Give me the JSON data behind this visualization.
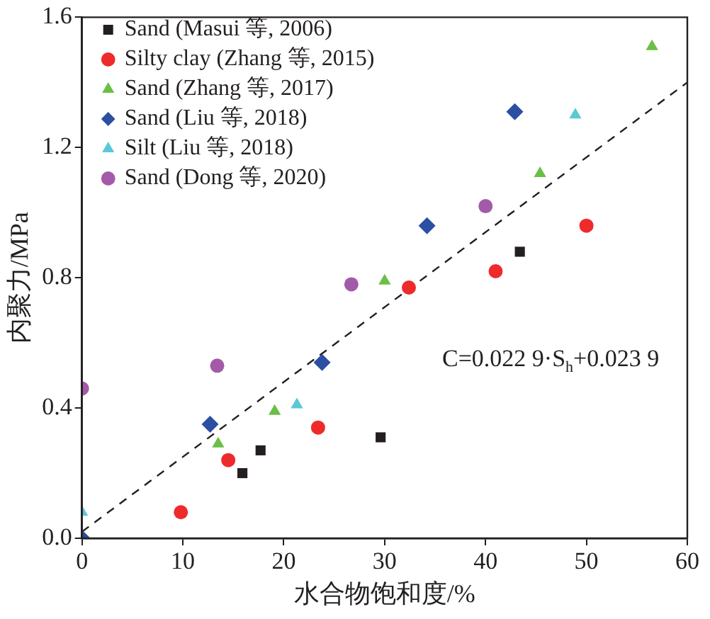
{
  "chart_data": {
    "type": "scatter",
    "xlabel": "水合物饱和度/%",
    "ylabel": "内聚力/MPa",
    "xlim": [
      0,
      60
    ],
    "xticks": [
      0,
      10,
      20,
      30,
      40,
      50,
      60
    ],
    "ylim": [
      0,
      1.6
    ],
    "yticks": [
      {
        "value": 0,
        "label": "0.0"
      },
      0.4,
      0.8,
      1.2,
      1.6
    ],
    "grid": false,
    "legend": "top left",
    "annotations": [
      "C=0.022 9·S$_{h}$+0.023 9"
    ],
    "series": [
      {
        "name": "Sand (Masui 等, 2006)",
        "color": "#231f20",
        "marker": "square",
        "x": [
          15.9,
          17.7,
          29.6,
          43.4
        ],
        "values": [
          0.2,
          0.27,
          0.31,
          0.88
        ]
      },
      {
        "name": "Silty clay (Zhang 等, 2015)",
        "color": "#ee2a2a",
        "marker": "circle",
        "x": [
          9.8,
          14.5,
          23.4,
          32.4,
          41.0,
          50.0
        ],
        "values": [
          0.08,
          0.24,
          0.34,
          0.77,
          0.82,
          0.96
        ]
      },
      {
        "name": "Sand (Zhang 等, 2017)",
        "color": "#6abf45",
        "marker": "triangle",
        "x": [
          13.5,
          19.1,
          30.0,
          45.4,
          56.5
        ],
        "values": [
          0.29,
          0.39,
          0.79,
          1.12,
          1.51
        ]
      },
      {
        "name": "Sand (Liu 等, 2018)",
        "color": "#2a4fa3",
        "marker": "diamond",
        "x": [
          0,
          12.7,
          23.8,
          34.2,
          42.9
        ],
        "values": [
          0.0,
          0.35,
          0.54,
          0.96,
          1.31
        ]
      },
      {
        "name": "Silt (Liu 等, 2018)",
        "color": "#5bc8d8",
        "marker": "triangle",
        "x": [
          0,
          21.3,
          48.9
        ],
        "values": [
          0.08,
          0.41,
          1.3
        ]
      },
      {
        "name": "Sand (Dong 等, 2020)",
        "color": "#a35aa8",
        "marker": "circle",
        "x": [
          0,
          13.4,
          26.7,
          40.0
        ],
        "values": [
          0.46,
          0.53,
          0.78,
          1.02
        ]
      },
      {
        "type": "line",
        "color": "#231f20",
        "line_style": "dashed",
        "marker": "none",
        "x": [
          0,
          60
        ],
        "values": [
          0.02,
          1.4
        ]
      }
    ]
  }
}
